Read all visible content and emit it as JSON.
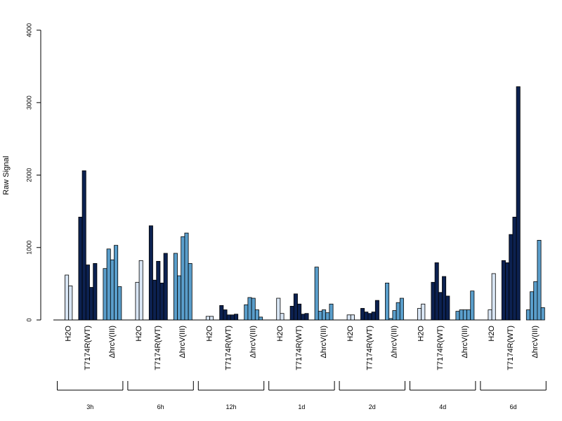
{
  "chart_data": {
    "type": "bar",
    "title": "",
    "xlabel": "",
    "ylabel": "Raw Signal",
    "ylim": [
      0,
      4000
    ],
    "yticks": [
      0,
      1000,
      2000,
      3000,
      4000
    ],
    "grid": false,
    "legend": "none",
    "colors": {
      "H2O": "#d9e6f5",
      "T7174R(WT)": "#0c2150",
      "ΔhrcV(III)": "#5a9ecb"
    },
    "treatments": [
      "H2O",
      "T7174R(WT)",
      "ΔhrcV(III)"
    ],
    "timepoints": [
      {
        "label": "3h",
        "values": {
          "H2O": [
            620,
            470
          ],
          "T7174R(WT)": [
            1420,
            2060,
            760,
            450,
            780
          ],
          "ΔhrcV(III)": [
            710,
            980,
            830,
            1030,
            460
          ]
        }
      },
      {
        "label": "6h",
        "values": {
          "H2O": [
            520,
            820
          ],
          "T7174R(WT)": [
            1300,
            550,
            810,
            510,
            920
          ],
          "ΔhrcV(III)": [
            920,
            610,
            1150,
            1200,
            780
          ]
        }
      },
      {
        "label": "12h",
        "values": {
          "H2O": [
            50,
            50
          ],
          "T7174R(WT)": [
            200,
            140,
            70,
            70,
            80
          ],
          "ΔhrcV(III)": [
            210,
            310,
            300,
            140,
            40
          ]
        }
      },
      {
        "label": "1d",
        "values": {
          "H2O": [
            300,
            90
          ],
          "T7174R(WT)": [
            190,
            360,
            220,
            80,
            90
          ],
          "ΔhrcV(III)": [
            730,
            120,
            140,
            100,
            220
          ]
        }
      },
      {
        "label": "2d",
        "values": {
          "H2O": [
            70,
            70
          ],
          "T7174R(WT)": [
            160,
            110,
            90,
            110,
            270
          ],
          "ΔhrcV(III)": [
            510,
            20,
            130,
            240,
            300
          ]
        }
      },
      {
        "label": "4d",
        "values": {
          "H2O": [
            160,
            220
          ],
          "T7174R(WT)": [
            520,
            790,
            380,
            600,
            330
          ],
          "ΔhrcV(III)": [
            120,
            140,
            140,
            140,
            400
          ]
        }
      },
      {
        "label": "6d",
        "values": {
          "H2O": [
            140,
            640
          ],
          "T7174R(WT)": [
            820,
            790,
            1180,
            1420,
            3220
          ],
          "ΔhrcV(III)": [
            140,
            390,
            530,
            1100,
            170
          ]
        }
      }
    ]
  }
}
